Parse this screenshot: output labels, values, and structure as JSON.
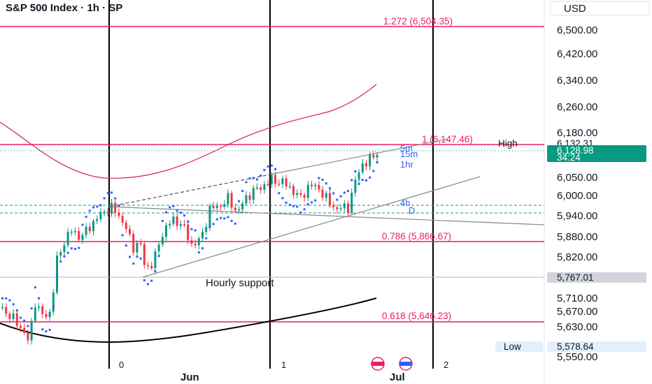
{
  "chart_data": {
    "type": "candlestick",
    "title": "S&P 500 Index · 1h · SP",
    "currency": "USD",
    "y_axis_ticks": [
      "6,500.00",
      "6,420.00",
      "6,340.00",
      "6,260.00",
      "6,180.00",
      "6,050.00",
      "6,000.00",
      "5,940.00",
      "5,880.00",
      "5,820.00",
      "5,710.00",
      "5,670.00",
      "5,630.00",
      "5,550.00"
    ],
    "x_axis_labels": [
      "0",
      "Jun",
      "1",
      "Jul",
      "2"
    ],
    "price_badges": {
      "last": "6,128.98",
      "countdown": "34:24",
      "high_label": "High",
      "high_value": "6,132.31",
      "low_label": "Low",
      "low_value": "5,578.64",
      "hourly_support_value": "5,767.01"
    },
    "fib_levels": [
      {
        "label": "1.272 (6,504.35)",
        "price": 6504.35
      },
      {
        "label": "1 (6,147.46)",
        "price": 6147.46
      },
      {
        "label": "0.786 (5,866.67)",
        "price": 5866.67
      },
      {
        "label": "0.618 (5,646.23)",
        "price": 5646.23
      }
    ],
    "support_level": {
      "label": "Hourly support",
      "price": 5767.01
    },
    "timeframe_labels": [
      "5m",
      "15m",
      "1hr",
      "4h",
      "D"
    ],
    "colors": {
      "fib": "#e91e63",
      "up_candle": "#089981",
      "down_candle": "#f23645",
      "psar": "#2962ff",
      "last_price": "#089981",
      "trendline": "#888888",
      "green_level": "#089981"
    }
  }
}
